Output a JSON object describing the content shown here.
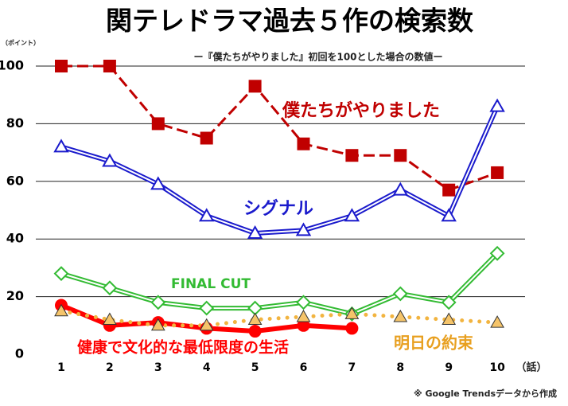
{
  "chart_data": {
    "type": "line",
    "title": "関テレドラマ過去５作の検索数",
    "subtitle": "ー『僕たちがやりました』初回を100とした場合の数値ー",
    "y_label": "（ポイント）",
    "x_label": "（話）",
    "note": "※ Google Trendsデータから作成",
    "categories": [
      "1",
      "2",
      "3",
      "4",
      "5",
      "6",
      "7",
      "8",
      "9",
      "10"
    ],
    "ylim": [
      0,
      100
    ],
    "yticks": [
      0,
      20,
      40,
      60,
      80,
      100
    ],
    "grid": true,
    "series": [
      {
        "name": "僕たちがやりました",
        "color": "#c00000",
        "marker": "square",
        "line_style": "dashed",
        "values": [
          100,
          100,
          80,
          75,
          93,
          73,
          69,
          69,
          57,
          63
        ]
      },
      {
        "name": "シグナル",
        "color": "#1a1acc",
        "marker": "triangle",
        "line_style": "double",
        "values": [
          72,
          67,
          59,
          48,
          42,
          43,
          48,
          57,
          48,
          86
        ]
      },
      {
        "name": "FINAL CUT",
        "color": "#33bb33",
        "marker": "diamond",
        "line_style": "double",
        "values": [
          28,
          23,
          18,
          16,
          16,
          18,
          14,
          21,
          18,
          35
        ]
      },
      {
        "name": "健康で文化的な最低限度の生活",
        "color": "#ff0000",
        "marker": "circle",
        "line_style": "solid",
        "values": [
          17,
          10,
          11,
          9,
          8,
          10,
          9,
          null,
          null,
          null
        ]
      },
      {
        "name": "明日の約束",
        "color": "#f2b440",
        "marker": "triangle",
        "line_style": "dotted",
        "values": [
          15,
          12,
          10,
          10,
          12,
          13,
          14,
          13,
          12,
          11
        ]
      }
    ]
  }
}
